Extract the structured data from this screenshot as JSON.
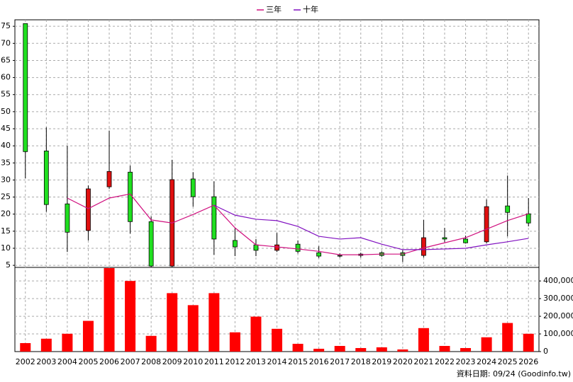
{
  "chart_data": [
    {
      "type": "candlestick",
      "categories": [
        "2002",
        "2003",
        "2004",
        "2005",
        "2006",
        "2007",
        "2008",
        "2009",
        "2010",
        "2011",
        "2012",
        "2013",
        "2014",
        "2015",
        "2016",
        "2017",
        "2018",
        "2019",
        "2020",
        "2021",
        "2022",
        "2023",
        "2024",
        "2025",
        "2026"
      ],
      "open": [
        75.8,
        38.5,
        23,
        15.2,
        28,
        32.3,
        17.8,
        4.8,
        30.3,
        25.1,
        12.3,
        11,
        9.4,
        11.2,
        8.7,
        7.9,
        8.3,
        8.7,
        8.7,
        7.9,
        13.1,
        12.7,
        11.9,
        22.4,
        20.1
      ],
      "high": [
        75.8,
        45.4,
        40,
        28.4,
        44.4,
        34.2,
        19.3,
        35.9,
        32.3,
        29.6,
        15.8,
        12.7,
        14.5,
        12.3,
        10.6,
        8.5,
        8.7,
        9.1,
        9.4,
        18.3,
        16,
        13.7,
        24.3,
        31.3,
        24.7
      ],
      "low": [
        30.5,
        20.7,
        8.9,
        12.3,
        27.4,
        14.3,
        4.4,
        4.4,
        22.2,
        8.1,
        7.7,
        7.7,
        8.9,
        8.5,
        7.1,
        7.3,
        7.3,
        7.5,
        6,
        7.3,
        11.8,
        11.4,
        11.4,
        13.5,
        16.4
      ],
      "close": [
        38.3,
        22.8,
        14.7,
        27.4,
        32.5,
        17.8,
        4.8,
        30.1,
        25.1,
        12.7,
        10.4,
        9.4,
        11,
        9.1,
        7.7,
        7.7,
        7.9,
        7.9,
        7.9,
        13.1,
        12.7,
        11.6,
        22.2,
        20.5,
        17.4
      ],
      "up_color": "#e01010",
      "down_color": "#20e020",
      "series": [
        {
          "name": "三年",
          "color": "#d0107f",
          "values": [
            null,
            null,
            24.7,
            21.6,
            24.7,
            25.9,
            18.3,
            17.4,
            19.9,
            22.6,
            16,
            11,
            10.4,
            9.8,
            9.1,
            8.1,
            8.1,
            8.3,
            8.3,
            10.1,
            11.6,
            13.1,
            15.6,
            18.1,
            20.1
          ]
        },
        {
          "name": "十年",
          "color": "#8010c0",
          "values": [
            null,
            null,
            null,
            null,
            null,
            null,
            null,
            null,
            null,
            22.6,
            19.7,
            18.5,
            18.1,
            16.4,
            13.5,
            12.7,
            13.1,
            11.2,
            9.6,
            9.6,
            9.8,
            10,
            11,
            11.9,
            12.9
          ]
        }
      ],
      "ylim": [
        4.4,
        76.9
      ],
      "yticks": [
        5,
        10,
        15,
        20,
        25,
        30,
        35,
        40,
        45,
        50,
        55,
        60,
        65,
        70,
        75
      ],
      "grid": true,
      "legend": "top"
    },
    {
      "type": "bar",
      "values": [
        48000,
        73000,
        101000,
        174000,
        473000,
        400000,
        89000,
        331000,
        263000,
        331000,
        109000,
        198000,
        129000,
        44000,
        16000,
        32000,
        20000,
        24000,
        12000,
        133000,
        32000,
        20000,
        81000,
        162000,
        101000
      ],
      "color": "#ff0000",
      "ylim": [
        0,
        476800
      ],
      "yticks": [
        0,
        {
          "value": 100000,
          "label": "100,000"
        },
        {
          "value": 200000,
          "label": "200,000"
        },
        {
          "value": 300000,
          "label": "300,000"
        },
        {
          "value": 400000,
          "label": "400,000"
        }
      ],
      "grid": true
    }
  ],
  "source": "資料日期: 09/24  (Goodinfo.tw)"
}
